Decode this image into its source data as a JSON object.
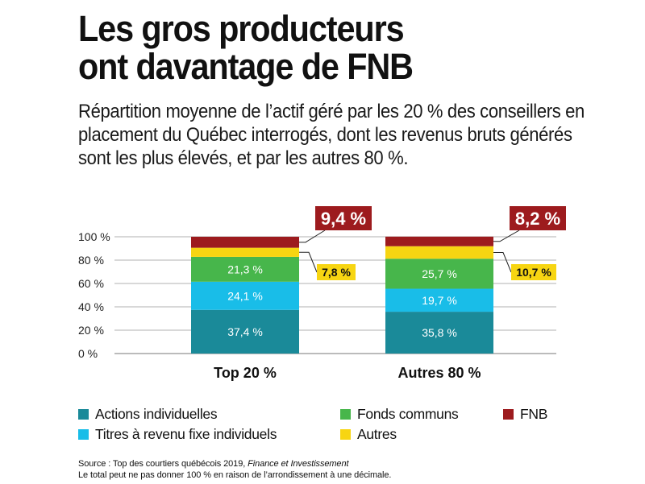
{
  "title_line1": "Les gros producteurs",
  "title_line2": "ont davantage de FNB",
  "subtitle": "Répartition moyenne de l’actif géré par les 20 % des conseillers en placement du Québec interrogés, dont les revenus bruts générés sont les plus élevés, et par les autres 80 %.",
  "chart_data": {
    "type": "bar",
    "stacked": true,
    "categories": [
      "Top 20 %",
      "Autres 80 %"
    ],
    "series": [
      {
        "name": "Actions individuelles",
        "values": [
          37.4,
          35.8
        ],
        "labels": [
          "37,4 %",
          "35,8 %"
        ],
        "color": "#1a8a99"
      },
      {
        "name": "Titres à revenu fixe individuels",
        "values": [
          24.1,
          19.7
        ],
        "labels": [
          "24,1 %",
          "19,7 %"
        ],
        "color": "#19bde8"
      },
      {
        "name": "Fonds communs",
        "values": [
          21.3,
          25.7
        ],
        "labels": [
          "21,3 %",
          "25,7 %"
        ],
        "color": "#47b64b"
      },
      {
        "name": "Autres",
        "values": [
          7.8,
          10.7
        ],
        "labels": [
          "7,8 %",
          "10,7 %"
        ],
        "color": "#f7d512"
      },
      {
        "name": "FNB",
        "values": [
          9.4,
          8.2
        ],
        "labels": [
          "9,4 %",
          "8,2 %"
        ],
        "color": "#9d1b1e"
      }
    ],
    "ylim": [
      0,
      100
    ],
    "yticks": [
      0,
      20,
      40,
      60,
      80,
      100
    ],
    "ytick_labels": [
      "0 %",
      "20 %",
      "40 %",
      "60 %",
      "80 %",
      "100 %"
    ],
    "grid": true,
    "legend_position": "bottom"
  },
  "legend": [
    {
      "label": "Actions individuelles",
      "color": "#1a8a99"
    },
    {
      "label": "Fonds communs",
      "color": "#47b64b"
    },
    {
      "label": "FNB",
      "color": "#9d1b1e"
    },
    {
      "label": "Titres à revenu fixe individuels",
      "color": "#19bde8"
    },
    {
      "label": "Autres",
      "color": "#f7d512"
    }
  ],
  "source_prefix": "Source : Top des courtiers québécois 2019, ",
  "source_publication": "Finance et Investissement",
  "note": "Le total peut ne pas donner 100 % en raison de l’arrondissement à une décimale."
}
